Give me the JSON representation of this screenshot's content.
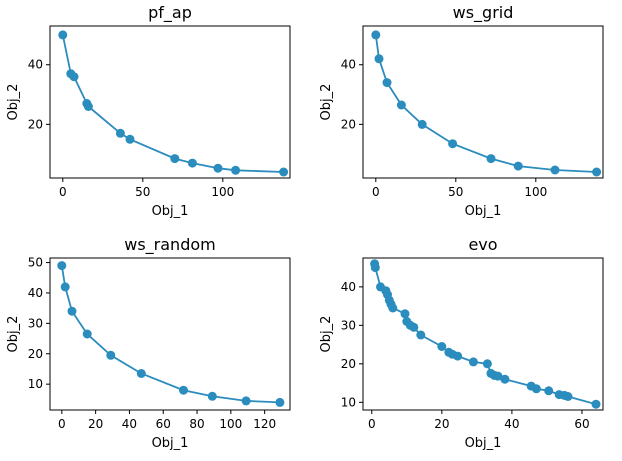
{
  "colors": {
    "series": "#2b8cbe"
  },
  "chart_data": [
    {
      "type": "line",
      "title": "pf_ap",
      "xlabel": "Obj_1",
      "ylabel": "Obj_2",
      "xlim": [
        -8,
        142
      ],
      "ylim": [
        2,
        53
      ],
      "xticks": [
        0,
        50,
        100
      ],
      "yticks": [
        20,
        40
      ],
      "grid": false,
      "series": [
        {
          "x": [
            0,
            5,
            7,
            15,
            16,
            36,
            42,
            70,
            81,
            97,
            108,
            138
          ],
          "y": [
            50,
            37,
            36,
            27,
            26,
            17,
            15,
            8.5,
            7,
            5.3,
            4.6,
            4
          ]
        }
      ]
    },
    {
      "type": "line",
      "title": "ws_grid",
      "xlabel": "Obj_1",
      "ylabel": "Obj_2",
      "xlim": [
        -8,
        142
      ],
      "ylim": [
        2,
        53
      ],
      "xticks": [
        0,
        50,
        100
      ],
      "yticks": [
        20,
        40
      ],
      "grid": false,
      "series": [
        {
          "x": [
            0,
            2,
            7,
            16,
            29,
            48,
            72,
            89,
            112,
            138
          ],
          "y": [
            50,
            42,
            34,
            26.5,
            20,
            13.5,
            8.5,
            6,
            4.7,
            4
          ]
        }
      ]
    },
    {
      "type": "line",
      "title": "ws_random",
      "xlabel": "Obj_1",
      "ylabel": "Obj_2",
      "xlim": [
        -7,
        135
      ],
      "ylim": [
        1.5,
        51.5
      ],
      "xticks": [
        0,
        20,
        40,
        60,
        80,
        100,
        120
      ],
      "yticks": [
        10,
        20,
        30,
        40,
        50
      ],
      "grid": false,
      "series": [
        {
          "x": [
            0,
            2,
            6,
            15,
            29,
            47,
            72,
            89,
            109,
            129
          ],
          "y": [
            49,
            42,
            34,
            26.5,
            19.5,
            13.5,
            8,
            6,
            4.5,
            4
          ]
        }
      ]
    },
    {
      "type": "line",
      "title": "evo",
      "xlabel": "Obj_1",
      "ylabel": "Obj_2",
      "xlim": [
        -2.5,
        66
      ],
      "ylim": [
        8,
        47.5
      ],
      "xticks": [
        0,
        20,
        40,
        60
      ],
      "yticks": [
        10,
        20,
        30,
        40
      ],
      "grid": false,
      "series": [
        {
          "x": [
            0.8,
            1,
            2.5,
            4,
            4.5,
            5,
            5.5,
            6,
            9.5,
            10,
            11,
            12,
            14,
            20,
            22,
            23,
            24.5,
            29,
            33,
            34,
            35,
            36,
            38,
            45.5,
            47,
            50.5,
            53.5,
            55,
            56,
            64
          ],
          "y": [
            46,
            45,
            40,
            39,
            38,
            36.5,
            35.5,
            34.5,
            33,
            31,
            30,
            29.5,
            27.5,
            24.5,
            23,
            22.5,
            22,
            20.5,
            20,
            17.5,
            17,
            16.8,
            16,
            14.2,
            13.5,
            13,
            12,
            11.8,
            11.5,
            9.5
          ]
        }
      ]
    }
  ]
}
